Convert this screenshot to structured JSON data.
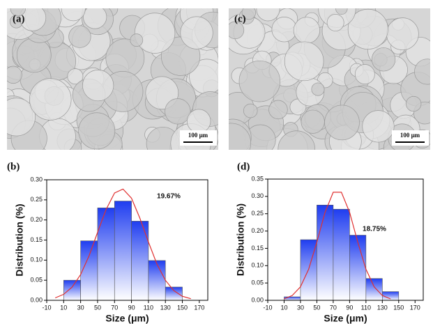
{
  "panels": [
    {
      "label": "(a)",
      "scale_bar": "100 μm"
    },
    {
      "label": "(c)",
      "scale_bar": "100 μm"
    }
  ],
  "chart_data": [
    {
      "type": "histogram",
      "panel_label": "(b)",
      "x_label": "Size (μm)",
      "y_label": "Distribution (%)",
      "bins": [
        10,
        30,
        50,
        70,
        90,
        110,
        130,
        150
      ],
      "values": [
        0.05,
        0.148,
        0.23,
        0.247,
        0.197,
        0.099,
        0.033
      ],
      "color": "#1f3df0",
      "annotation": "19.67%",
      "fit": {
        "color": "#e03030",
        "x": [
          0,
          10,
          20,
          30,
          40,
          50,
          60,
          70,
          80,
          90,
          100,
          110,
          120,
          130,
          140,
          150,
          160
        ],
        "y": [
          0.006,
          0.015,
          0.033,
          0.064,
          0.111,
          0.169,
          0.226,
          0.267,
          0.277,
          0.254,
          0.204,
          0.145,
          0.09,
          0.05,
          0.024,
          0.01,
          0.004
        ]
      },
      "xlim": [
        -10,
        180
      ],
      "xticks": [
        -10,
        10,
        30,
        50,
        70,
        90,
        110,
        130,
        150,
        170
      ],
      "ylim": [
        0,
        0.3
      ],
      "yticks": [
        {
          "value": 0,
          "label": "0.00"
        },
        {
          "value": 0.05,
          "label": "0.05"
        },
        {
          "value": 0.1,
          "label": "0.10"
        },
        {
          "value": 0.15,
          "label": "0.15"
        },
        {
          "value": 0.2,
          "label": "0.20"
        },
        {
          "value": 0.25,
          "label": "0.25"
        },
        {
          "value": 0.3,
          "label": "0.30"
        }
      ]
    },
    {
      "type": "histogram",
      "panel_label": "(d)",
      "x_label": "Size (μm)",
      "y_label": "Distribution (%)",
      "bins": [
        10,
        30,
        50,
        70,
        90,
        110,
        130,
        150
      ],
      "values": [
        0.01,
        0.175,
        0.275,
        0.263,
        0.188,
        0.063,
        0.025
      ],
      "color": "#1f3df0",
      "annotation": "18.75%",
      "fit": {
        "color": "#e03030",
        "x": [
          10,
          20,
          30,
          40,
          50,
          60,
          70,
          80,
          90,
          100,
          110,
          120,
          130,
          140
        ],
        "y": [
          0.004,
          0.014,
          0.039,
          0.09,
          0.168,
          0.254,
          0.312,
          0.312,
          0.254,
          0.168,
          0.09,
          0.039,
          0.014,
          0.004
        ]
      },
      "xlim": [
        -10,
        180
      ],
      "xticks": [
        -10,
        10,
        30,
        50,
        70,
        90,
        110,
        130,
        150,
        170
      ],
      "ylim": [
        0,
        0.35
      ],
      "yticks": [
        {
          "value": 0,
          "label": "0.00"
        },
        {
          "value": 0.05,
          "label": "0.05"
        },
        {
          "value": 0.1,
          "label": "0.10"
        },
        {
          "value": 0.15,
          "label": "0.15"
        },
        {
          "value": 0.2,
          "label": "0.20"
        },
        {
          "value": 0.25,
          "label": "0.25"
        },
        {
          "value": 0.3,
          "label": "0.30"
        },
        {
          "value": 0.35,
          "label": "0.35"
        }
      ]
    }
  ]
}
